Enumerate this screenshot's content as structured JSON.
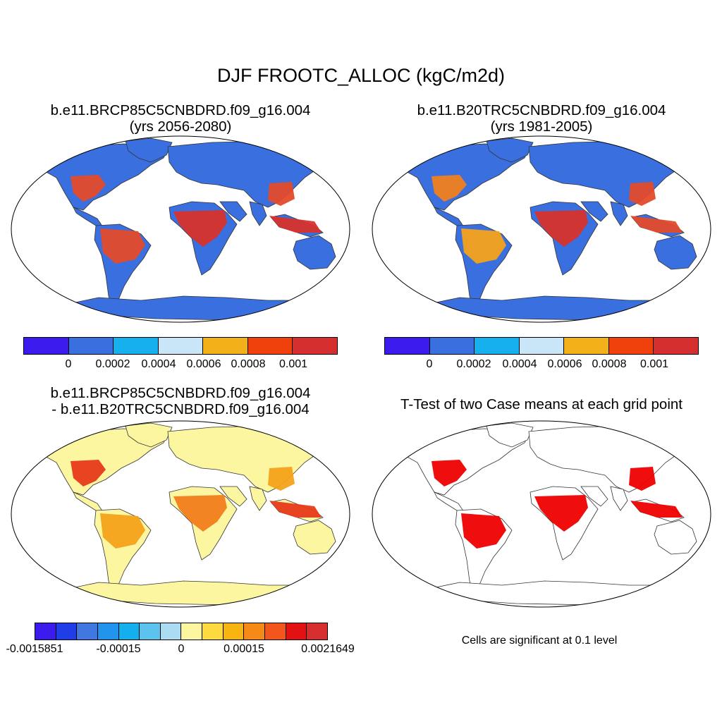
{
  "figure": {
    "title": "DJF FROOTC_ALLOC (kgC/m2d)"
  },
  "panels": [
    {
      "id": "future",
      "title_line1": "b.e11.BRCP85C5CNBDRD.f09_g16.004",
      "title_line2": "(yrs 2056-2080)",
      "ocean_color": "#ffffff",
      "land_base_color": "#3a6fe0",
      "regions": [
        {
          "region": "eastern-us",
          "color": "#e44a2a"
        },
        {
          "region": "amazon",
          "color": "#e44a2a"
        },
        {
          "region": "central-africa",
          "color": "#d8322c"
        },
        {
          "region": "se-asia",
          "color": "#d8322c"
        },
        {
          "region": "east-asia",
          "color": "#e44a2a"
        }
      ]
    },
    {
      "id": "historical",
      "title_line1": "b.e11.B20TRC5CNBDRD.f09_g16.004",
      "title_line2": "(yrs 1981-2005)",
      "ocean_color": "#ffffff",
      "land_base_color": "#3a6fe0",
      "regions": [
        {
          "region": "eastern-us",
          "color": "#f0801f"
        },
        {
          "region": "amazon",
          "color": "#f4a21a"
        },
        {
          "region": "central-africa",
          "color": "#d8322c"
        },
        {
          "region": "se-asia",
          "color": "#e44a2a"
        },
        {
          "region": "east-asia",
          "color": "#e44a2a"
        }
      ]
    },
    {
      "id": "difference",
      "title_line1": "b.e11.BRCP85C5CNBDRD.f09_g16.004",
      "title_line2": "- b.e11.B20TRC5CNBDRD.f09_g16.004",
      "ocean_color": "#ffffff",
      "land_base_color": "#fdf6a0",
      "regions": [
        {
          "region": "eastern-us",
          "color": "#e83a1a"
        },
        {
          "region": "amazon",
          "color": "#f4a21a"
        },
        {
          "region": "central-africa",
          "color": "#f27d1c"
        },
        {
          "region": "se-asia",
          "color": "#e83a1a"
        },
        {
          "region": "east-asia",
          "color": "#f4a21a"
        }
      ]
    },
    {
      "id": "ttest",
      "title_line1": "T-Test of two Case means at each grid point",
      "ocean_color": "#ffffff",
      "land_base_color": "#ffffff",
      "regions": [
        {
          "region": "eastern-us",
          "color": "#ee0000"
        },
        {
          "region": "amazon",
          "color": "#ee0000"
        },
        {
          "region": "central-africa",
          "color": "#ee0000"
        },
        {
          "region": "se-asia",
          "color": "#ee0000"
        },
        {
          "region": "east-asia",
          "color": "#ee0000"
        }
      ]
    }
  ],
  "colorbars": [
    {
      "id": "future-colorbar",
      "colors": [
        "#3b1aee",
        "#3a6fe0",
        "#17b0ee",
        "#c8e6f8",
        "#f4b018",
        "#f0400c",
        "#d42e2e"
      ],
      "ticks": [
        "0",
        "0.0002",
        "0.0004",
        "0.0006",
        "0.0008",
        "0.001"
      ]
    },
    {
      "id": "historical-colorbar",
      "colors": [
        "#3b1aee",
        "#3a6fe0",
        "#17b0ee",
        "#c8e6f8",
        "#f4b018",
        "#f0400c",
        "#d42e2e"
      ],
      "ticks": [
        "0",
        "0.0002",
        "0.0004",
        "0.0006",
        "0.0008",
        "0.001"
      ]
    },
    {
      "id": "difference-colorbar",
      "colors": [
        "#3b1aee",
        "#1f3ee8",
        "#3f76e0",
        "#2094ec",
        "#14b0ee",
        "#5cc2ee",
        "#acdcf2",
        "#fdf6a0",
        "#fdda40",
        "#f8b410",
        "#f68a16",
        "#f2561c",
        "#e31212",
        "#d62e2e"
      ],
      "ticks": [
        "-0.0015851",
        "-0.00015",
        "0",
        "0.00015",
        "0.0021649"
      ]
    }
  ],
  "significance_note": "Cells are significant at 0.1 level"
}
